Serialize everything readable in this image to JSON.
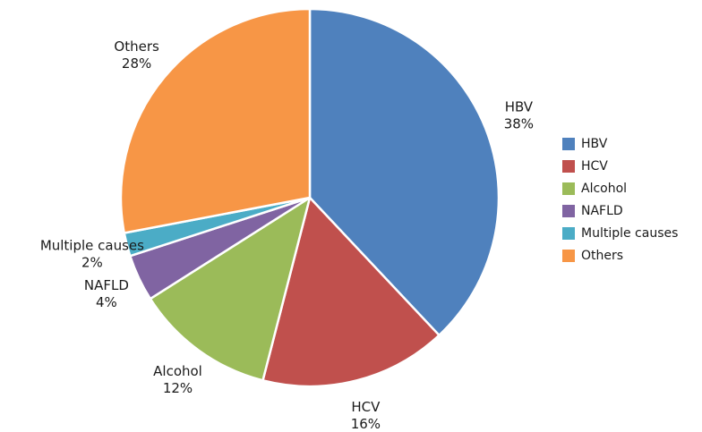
{
  "figure": {
    "background": "#ffffff"
  },
  "chart_data": {
    "type": "pie",
    "title": "",
    "categories": [
      "HBV",
      "HCV",
      "Alcohol",
      "NAFLD",
      "Multiple causes",
      "Others"
    ],
    "values": [
      38,
      16,
      12,
      4,
      2,
      28
    ],
    "unit": "%",
    "colors": [
      "#4F81BD",
      "#C0504D",
      "#9BBB59",
      "#8064A2",
      "#4BACC6",
      "#F79646"
    ],
    "start_angle_deg": 0,
    "direction": "clockwise",
    "slice_border_color": "#ffffff",
    "label_style": "name-and-percent-outside",
    "legend_position": "right",
    "legend_entries": [
      "HBV",
      "HCV",
      "Alcohol",
      "NAFLD",
      "Multiple causes",
      "Others"
    ]
  }
}
